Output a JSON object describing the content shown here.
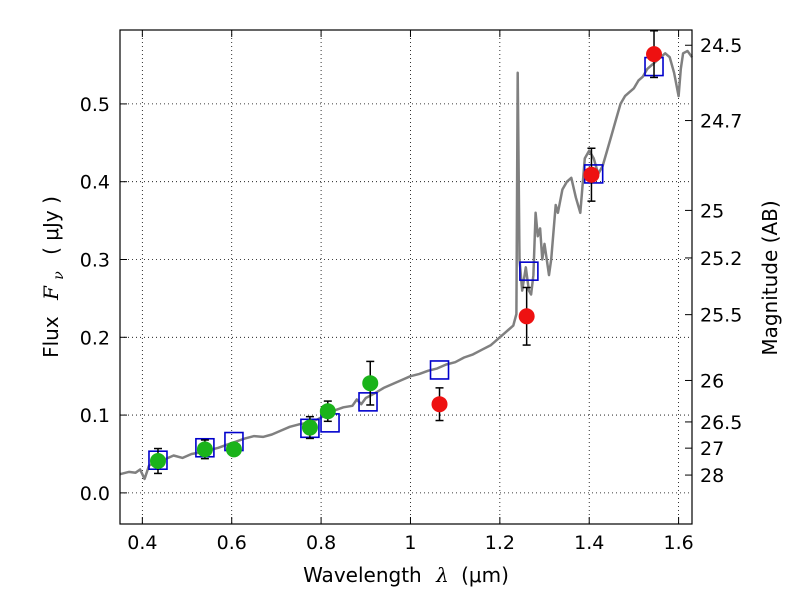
{
  "chart_data": {
    "type": "scatter",
    "title": "",
    "xlabel": "Wavelength",
    "xlabel_symbol": "λ",
    "xlabel_unit": "(μm)",
    "ylabel": "Flux",
    "ylabel_symbol": "F",
    "ylabel_subscript": "ν",
    "ylabel_unit": "( μJy )",
    "ylabel_right": "Magnitude (AB)",
    "xlim": [
      0.35,
      1.63
    ],
    "ylim": [
      -0.04,
      0.595
    ],
    "grid": true,
    "x_ticks": [
      0.4,
      0.6,
      0.8,
      1.0,
      1.2,
      1.4,
      1.6
    ],
    "x_tick_labels": [
      "0.4",
      "0.6",
      "0.8",
      "1",
      "1.2",
      "1.4",
      "1.6"
    ],
    "y_ticks": [
      0.0,
      0.1,
      0.2,
      0.3,
      0.4,
      0.5
    ],
    "y_tick_labels": [
      "0.0",
      "0.1",
      "0.2",
      "0.3",
      "0.4",
      "0.5"
    ],
    "right_ticks": [
      {
        "label": "24.5",
        "flux": 0.5754
      },
      {
        "label": "24.7",
        "flux": 0.4786
      },
      {
        "label": "25",
        "flux": 0.3631
      },
      {
        "label": "25.2",
        "flux": 0.302
      },
      {
        "label": "25.5",
        "flux": 0.2291
      },
      {
        "label": "26",
        "flux": 0.1445
      },
      {
        "label": "26.5",
        "flux": 0.0912
      },
      {
        "label": "27",
        "flux": 0.0575
      },
      {
        "label": "28",
        "flux": 0.0229
      }
    ],
    "series": [
      {
        "name": "model_spectrum",
        "kind": "line",
        "color": "#808080",
        "points": [
          [
            0.35,
            0.024
          ],
          [
            0.37,
            0.027
          ],
          [
            0.385,
            0.026
          ],
          [
            0.395,
            0.03
          ],
          [
            0.405,
            0.018
          ],
          [
            0.415,
            0.035
          ],
          [
            0.43,
            0.04
          ],
          [
            0.45,
            0.043
          ],
          [
            0.47,
            0.048
          ],
          [
            0.49,
            0.045
          ],
          [
            0.51,
            0.05
          ],
          [
            0.53,
            0.052
          ],
          [
            0.55,
            0.055
          ],
          [
            0.57,
            0.058
          ],
          [
            0.59,
            0.062
          ],
          [
            0.61,
            0.066
          ],
          [
            0.63,
            0.07
          ],
          [
            0.65,
            0.073
          ],
          [
            0.67,
            0.072
          ],
          [
            0.69,
            0.075
          ],
          [
            0.71,
            0.08
          ],
          [
            0.73,
            0.085
          ],
          [
            0.75,
            0.088
          ],
          [
            0.77,
            0.09
          ],
          [
            0.79,
            0.094
          ],
          [
            0.81,
            0.1
          ],
          [
            0.83,
            0.106
          ],
          [
            0.85,
            0.11
          ],
          [
            0.87,
            0.112
          ],
          [
            0.88,
            0.12
          ],
          [
            0.89,
            0.114
          ],
          [
            0.9,
            0.122
          ],
          [
            0.92,
            0.128
          ],
          [
            0.94,
            0.135
          ],
          [
            0.96,
            0.14
          ],
          [
            0.98,
            0.145
          ],
          [
            1.0,
            0.15
          ],
          [
            1.02,
            0.153
          ],
          [
            1.04,
            0.157
          ],
          [
            1.06,
            0.16
          ],
          [
            1.08,
            0.165
          ],
          [
            1.1,
            0.168
          ],
          [
            1.12,
            0.174
          ],
          [
            1.14,
            0.178
          ],
          [
            1.16,
            0.184
          ],
          [
            1.18,
            0.19
          ],
          [
            1.19,
            0.195
          ],
          [
            1.2,
            0.2
          ],
          [
            1.21,
            0.205
          ],
          [
            1.22,
            0.21
          ],
          [
            1.23,
            0.215
          ],
          [
            1.237,
            0.23
          ],
          [
            1.24,
            0.54
          ],
          [
            1.244,
            0.3
          ],
          [
            1.25,
            0.26
          ],
          [
            1.258,
            0.29
          ],
          [
            1.265,
            0.26
          ],
          [
            1.27,
            0.255
          ],
          [
            1.275,
            0.28
          ],
          [
            1.28,
            0.36
          ],
          [
            1.285,
            0.33
          ],
          [
            1.29,
            0.34
          ],
          [
            1.295,
            0.3
          ],
          [
            1.3,
            0.32
          ],
          [
            1.31,
            0.28
          ],
          [
            1.315,
            0.3
          ],
          [
            1.325,
            0.37
          ],
          [
            1.33,
            0.36
          ],
          [
            1.34,
            0.39
          ],
          [
            1.35,
            0.4
          ],
          [
            1.36,
            0.405
          ],
          [
            1.37,
            0.38
          ],
          [
            1.38,
            0.36
          ],
          [
            1.39,
            0.43
          ],
          [
            1.4,
            0.44
          ],
          [
            1.41,
            0.43
          ],
          [
            1.42,
            0.41
          ],
          [
            1.43,
            0.42
          ],
          [
            1.44,
            0.44
          ],
          [
            1.45,
            0.46
          ],
          [
            1.46,
            0.48
          ],
          [
            1.47,
            0.5
          ],
          [
            1.48,
            0.51
          ],
          [
            1.49,
            0.515
          ],
          [
            1.5,
            0.52
          ],
          [
            1.51,
            0.53
          ],
          [
            1.52,
            0.535
          ],
          [
            1.53,
            0.545
          ],
          [
            1.54,
            0.55
          ],
          [
            1.55,
            0.555
          ],
          [
            1.56,
            0.56
          ],
          [
            1.57,
            0.565
          ],
          [
            1.58,
            0.56
          ],
          [
            1.59,
            0.54
          ],
          [
            1.6,
            0.51
          ],
          [
            1.605,
            0.545
          ],
          [
            1.61,
            0.565
          ],
          [
            1.62,
            0.568
          ],
          [
            1.63,
            0.56
          ]
        ]
      },
      {
        "name": "model_bandpass",
        "kind": "open_square",
        "color": "#0000cc",
        "points": [
          [
            0.435,
            0.042
          ],
          [
            0.54,
            0.058
          ],
          [
            0.605,
            0.066
          ],
          [
            0.775,
            0.083
          ],
          [
            0.82,
            0.09
          ],
          [
            0.905,
            0.117
          ],
          [
            1.065,
            0.158
          ],
          [
            1.265,
            0.285
          ],
          [
            1.41,
            0.41
          ],
          [
            1.545,
            0.548
          ]
        ]
      },
      {
        "name": "observed_optical",
        "kind": "filled_circle",
        "color": "#1ab31a",
        "points": [
          {
            "x": 0.435,
            "y": 0.041,
            "err": 0.016
          },
          {
            "x": 0.54,
            "y": 0.056,
            "err": 0.012
          },
          {
            "x": 0.605,
            "y": 0.056,
            "err": 0.008
          },
          {
            "x": 0.775,
            "y": 0.084,
            "err": 0.014
          },
          {
            "x": 0.815,
            "y": 0.105,
            "err": 0.013
          },
          {
            "x": 0.91,
            "y": 0.141,
            "err": 0.028
          }
        ]
      },
      {
        "name": "observed_nir",
        "kind": "filled_circle",
        "color": "#ee1111",
        "points": [
          {
            "x": 1.065,
            "y": 0.114,
            "err": 0.021
          },
          {
            "x": 1.26,
            "y": 0.227,
            "err": 0.037
          },
          {
            "x": 1.405,
            "y": 0.409,
            "err": 0.034
          },
          {
            "x": 1.545,
            "y": 0.564,
            "err": 0.03
          }
        ]
      }
    ]
  }
}
